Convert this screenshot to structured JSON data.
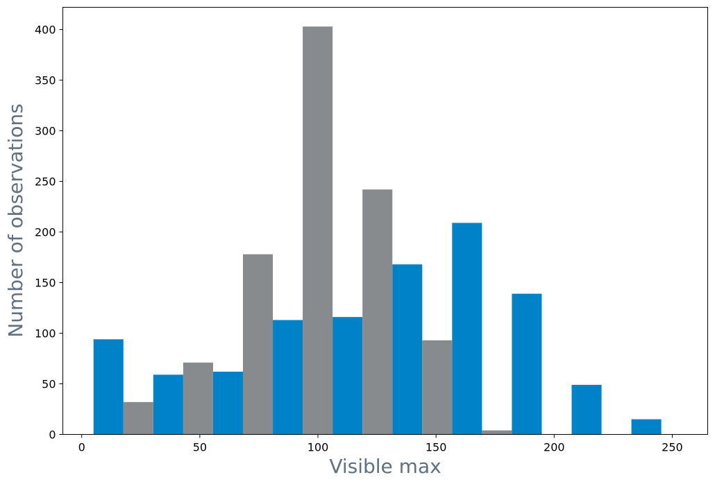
{
  "colors": {
    "series_a": "#0082c8",
    "series_b": "#888b8e",
    "axis_label": "#607080",
    "frame": "#000000"
  },
  "chart_data": {
    "type": "bar",
    "xlabel": "Visible max",
    "ylabel": "Number of observations",
    "xlim": [
      -8,
      265
    ],
    "ylim": [
      0,
      422
    ],
    "xticks": [
      0,
      50,
      100,
      150,
      200,
      250
    ],
    "yticks": [
      0,
      50,
      100,
      150,
      200,
      250,
      300,
      350,
      400
    ],
    "grid": false,
    "legend": "none",
    "bin_edges": [
      5,
      30.3,
      55.6,
      80.9,
      106.2,
      131.5,
      156.8,
      182.1,
      207.4,
      232.7,
      258
    ],
    "series": [
      {
        "color": "#0082c8",
        "values": [
          94,
          59,
          62,
          113,
          116,
          168,
          209,
          139,
          49,
          15
        ]
      },
      {
        "color": "#888b8e",
        "values": [
          32,
          71,
          178,
          403,
          242,
          93,
          4,
          0,
          0,
          0
        ]
      }
    ]
  }
}
